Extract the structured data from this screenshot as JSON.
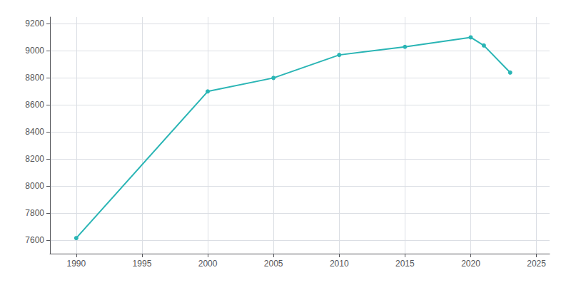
{
  "chart_data": {
    "type": "line",
    "x": [
      1990,
      2000,
      2005,
      2010,
      2015,
      2020,
      2021,
      2023
    ],
    "values": [
      7615,
      8700,
      8800,
      8970,
      9030,
      9100,
      9040,
      8840
    ],
    "color": "#2ab5b5",
    "marker": "circle",
    "xlim": [
      1988,
      2026
    ],
    "ylim": [
      7500,
      9250
    ],
    "xticks": [
      1990,
      1995,
      2000,
      2005,
      2010,
      2015,
      2020,
      2025
    ],
    "yticks": [
      7600,
      7800,
      8000,
      8200,
      8400,
      8600,
      8800,
      9000,
      9200
    ],
    "grid": true
  }
}
